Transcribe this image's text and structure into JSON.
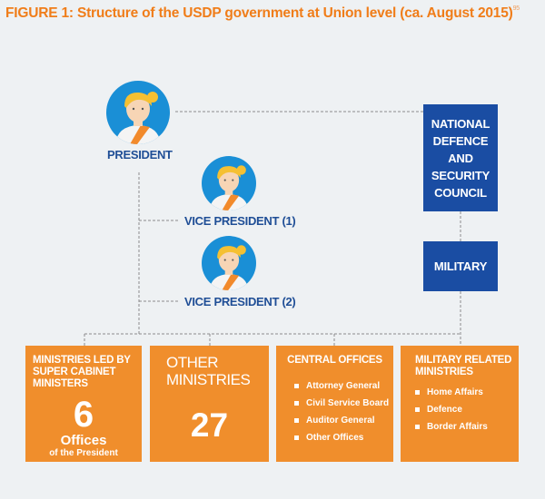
{
  "figure": {
    "title": "FIGURE 1: Structure of the USDP government at Union level (ca. August 2015)",
    "note_marker": "95"
  },
  "roles": {
    "president": "PRESIDENT",
    "vice_president_1": "VICE PRESIDENT (1)",
    "vice_president_2": "VICE PRESIDENT (2)"
  },
  "blue_boxes": {
    "ndsc": "NATIONAL DEFENCE AND SECURITY COUNCIL",
    "military": "MILITARY"
  },
  "orange_boxes": {
    "super_cabinet": {
      "title": "MINISTRIES LED BY SUPER CABINET MINISTERS",
      "number": "6",
      "subtitle": "Offices",
      "subtitle_small": "of the President"
    },
    "other_ministries": {
      "title": "OTHER MINISTRIES",
      "number": "27"
    },
    "central_offices": {
      "title": "CENTRAL OFFICES",
      "items": [
        "Attorney General",
        "Civil Service Board",
        "Auditor General",
        "Other Offices"
      ]
    },
    "military_related": {
      "title": "MILITARY RELATED MINISTRIES",
      "items": [
        "Home Affairs",
        "Defence",
        "Border Affairs"
      ]
    }
  },
  "colors": {
    "orange": "#f08e2c",
    "blue": "#1a4da3",
    "title_orange": "#f07d19",
    "avatar_circle": "#1a8fd6",
    "hair": "#f5c032",
    "sash": "#f28a2b"
  }
}
